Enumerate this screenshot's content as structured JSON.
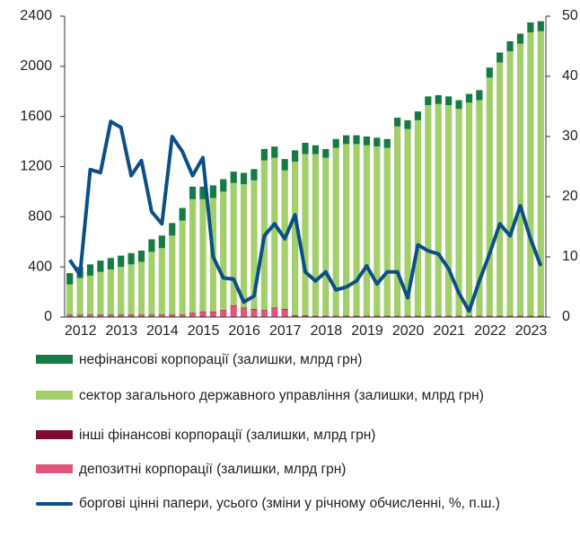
{
  "chart_data": {
    "type": "bar",
    "categories": [
      "2012",
      null,
      null,
      null,
      "2013",
      null,
      null,
      null,
      "2014",
      null,
      null,
      null,
      "2015",
      null,
      null,
      null,
      "2016",
      null,
      null,
      null,
      "2017",
      null,
      null,
      null,
      "2018",
      null,
      null,
      null,
      "2019",
      null,
      null,
      null,
      "2020",
      null,
      null,
      null,
      "2021",
      null,
      null,
      null,
      "2022",
      null,
      null,
      null,
      "2023",
      null,
      null
    ],
    "series": [
      {
        "name": "нефінансові корпорації (залишки, млрд грн)",
        "color": "#157a45",
        "values": [
          90,
          90,
          90,
          90,
          90,
          90,
          90,
          90,
          100,
          100,
          100,
          100,
          100,
          100,
          100,
          100,
          90,
          90,
          90,
          90,
          90,
          90,
          90,
          90,
          70,
          70,
          70,
          70,
          70,
          70,
          70,
          70,
          70,
          70,
          70,
          70,
          70,
          70,
          70,
          70,
          80,
          80,
          80,
          80,
          80,
          80,
          80
        ]
      },
      {
        "name": "сектор загального державного управління  (залишки, млрд грн)",
        "color": "#a2cf6c",
        "values": [
          240,
          290,
          310,
          340,
          360,
          380,
          400,
          420,
          500,
          530,
          630,
          750,
          905,
          895,
          905,
          945,
          975,
          985,
          1025,
          1195,
          1195,
          1105,
          1225,
          1285,
          1290,
          1260,
          1340,
          1370,
          1370,
          1360,
          1350,
          1340,
          1510,
          1490,
          1560,
          1680,
          1690,
          1680,
          1650,
          1700,
          1720,
          1900,
          2020,
          2110,
          2170,
          2260,
          2270
        ]
      },
      {
        "name": "інші фінансові корпорації  (залишки, млрд грн)",
        "color": "#7b0b34",
        "values": [
          5,
          5,
          5,
          5,
          5,
          5,
          5,
          5,
          5,
          5,
          5,
          5,
          5,
          5,
          5,
          5,
          5,
          5,
          5,
          5,
          5,
          5,
          5,
          5,
          5,
          5,
          5,
          5,
          5,
          5,
          5,
          5,
          5,
          5,
          5,
          5,
          5,
          5,
          5,
          5,
          5,
          5,
          5,
          5,
          5,
          5,
          5
        ]
      },
      {
        "name": "депозитні корпорації  (залишки, млрд грн)",
        "color": "#e0567a",
        "values": [
          15,
          15,
          15,
          15,
          15,
          15,
          15,
          15,
          15,
          15,
          15,
          15,
          30,
          40,
          40,
          50,
          90,
          70,
          60,
          50,
          70,
          60,
          10,
          10,
          5,
          5,
          5,
          5,
          5,
          5,
          5,
          5,
          5,
          5,
          5,
          5,
          5,
          5,
          5,
          5,
          5,
          5,
          5,
          5,
          5,
          5,
          5
        ]
      },
      {
        "name": "боргові цінні папери, усього (зміни у річному обчисленні, %, п.ш.)",
        "color": "#0b4f87",
        "type": "line",
        "axis": "y2",
        "values": [
          9.5,
          7,
          24.5,
          24,
          32.5,
          31.5,
          23.5,
          26,
          17.5,
          15.5,
          30,
          27.5,
          23.5,
          26.5,
          10,
          6.5,
          6.3,
          2.5,
          3.5,
          13.5,
          15.5,
          13,
          17,
          7.5,
          6,
          7.5,
          4.5,
          5,
          6,
          8.5,
          5.5,
          7.5,
          7.5,
          3.2,
          12,
          11,
          10.5,
          8,
          4,
          1,
          6,
          10.5,
          15.5,
          13.5,
          18.5,
          13,
          8.5
        ]
      }
    ],
    "ylim": [
      0,
      2400
    ],
    "yticks": [
      0,
      400,
      800,
      1200,
      1600,
      2000,
      2400
    ],
    "y2lim": [
      0,
      50
    ],
    "y2ticks": [
      0,
      10,
      20,
      30,
      40,
      50
    ]
  }
}
